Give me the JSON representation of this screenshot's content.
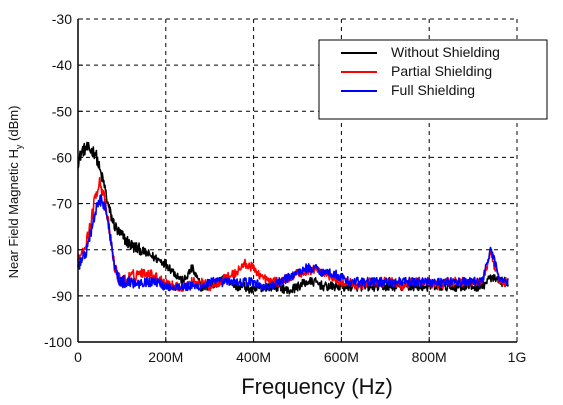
{
  "chart_data": {
    "type": "line",
    "title": "",
    "xlabel": "Frequency (Hz)",
    "ylabel_main": "Near Field Magnetic H",
    "ylabel_sub": "y",
    "ylabel_unit": " (dBm)",
    "xlim": [
      0,
      1000
    ],
    "ylim": [
      -100,
      -30
    ],
    "xticks": [
      0,
      200,
      400,
      600,
      800,
      1000
    ],
    "xtick_labels": [
      "0",
      "200M",
      "400M",
      "600M",
      "800M",
      "1G"
    ],
    "yticks": [
      -30,
      -40,
      -50,
      -60,
      -70,
      -80,
      -90,
      -100
    ],
    "ytick_labels": [
      "-30",
      "-40",
      "-50",
      "-60",
      "-70",
      "-80",
      "-90",
      "-100"
    ],
    "grid": true,
    "legend_position": "top-right",
    "series": [
      {
        "name": "Without Shielding",
        "color": "#000000",
        "x": [
          0,
          10,
          20,
          30,
          40,
          50,
          60,
          70,
          80,
          90,
          100,
          120,
          140,
          160,
          180,
          200,
          220,
          240,
          260,
          280,
          300,
          320,
          340,
          360,
          380,
          400,
          420,
          440,
          460,
          480,
          500,
          520,
          540,
          560,
          580,
          600,
          620,
          640,
          660,
          680,
          700,
          720,
          740,
          760,
          780,
          800,
          820,
          840,
          860,
          880,
          900,
          920,
          940,
          960,
          980
        ],
        "y": [
          -61,
          -58.5,
          -58,
          -58.5,
          -59,
          -63,
          -66,
          -71,
          -74,
          -76,
          -77,
          -79,
          -80,
          -81,
          -82,
          -83,
          -85,
          -87,
          -84,
          -88,
          -88,
          -87,
          -86,
          -88,
          -88,
          -89,
          -88,
          -88,
          -88,
          -89,
          -88,
          -87,
          -87,
          -88,
          -88,
          -88,
          -88,
          -88,
          -88,
          -88,
          -88,
          -88,
          -88,
          -88,
          -88,
          -88,
          -88,
          -88,
          -88,
          -88,
          -88,
          -88,
          -86,
          -87,
          -87
        ]
      },
      {
        "name": "Partial Shielding",
        "color": "#ff0000",
        "x": [
          0,
          10,
          20,
          30,
          40,
          50,
          60,
          70,
          80,
          90,
          100,
          120,
          140,
          160,
          180,
          200,
          220,
          240,
          260,
          280,
          300,
          320,
          340,
          360,
          380,
          400,
          420,
          440,
          460,
          480,
          500,
          520,
          540,
          560,
          580,
          600,
          620,
          640,
          660,
          680,
          700,
          720,
          740,
          760,
          780,
          800,
          820,
          840,
          860,
          880,
          900,
          920,
          940,
          960,
          980
        ],
        "y": [
          -82,
          -80,
          -78,
          -74,
          -68,
          -65,
          -69,
          -75,
          -82,
          -86,
          -87,
          -86,
          -85,
          -85,
          -86,
          -87,
          -88,
          -88,
          -87,
          -87,
          -88,
          -87,
          -86,
          -85,
          -83,
          -84,
          -86,
          -87,
          -87,
          -86,
          -85,
          -85,
          -84,
          -85,
          -86,
          -87,
          -87,
          -88,
          -87,
          -87,
          -87,
          -87,
          -88,
          -87,
          -87,
          -87,
          -88,
          -87,
          -87,
          -87,
          -87,
          -87,
          -81,
          -87,
          -87
        ]
      },
      {
        "name": "Full Shielding",
        "color": "#0000ff",
        "x": [
          0,
          10,
          20,
          30,
          40,
          50,
          60,
          70,
          80,
          90,
          100,
          120,
          140,
          160,
          180,
          200,
          220,
          240,
          260,
          280,
          300,
          320,
          340,
          360,
          380,
          400,
          420,
          440,
          460,
          480,
          500,
          520,
          540,
          560,
          580,
          600,
          620,
          640,
          660,
          680,
          700,
          720,
          740,
          760,
          780,
          800,
          820,
          840,
          860,
          880,
          900,
          920,
          940,
          960,
          980
        ],
        "y": [
          -84,
          -82,
          -80,
          -76,
          -72,
          -69,
          -70,
          -75,
          -81,
          -86,
          -87,
          -87,
          -87,
          -87,
          -87,
          -88,
          -88,
          -88,
          -88,
          -88,
          -87,
          -87,
          -87,
          -87,
          -87,
          -87,
          -88,
          -88,
          -87,
          -86,
          -85,
          -84,
          -84,
          -85,
          -85,
          -86,
          -87,
          -87,
          -87,
          -87,
          -87,
          -87,
          -87,
          -87,
          -87,
          -87,
          -87,
          -87,
          -87,
          -87,
          -87,
          -87,
          -80,
          -86,
          -87
        ]
      }
    ]
  }
}
